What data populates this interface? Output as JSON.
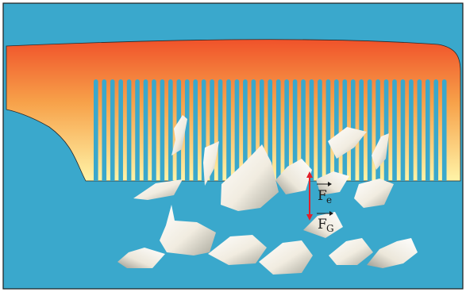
{
  "scene": {
    "background_color": "#3aa8cc",
    "comb_color_top": "#f0522a",
    "comb_color_bottom": "#fff4a8",
    "paper_color": "#f6f3e8",
    "arrow_color": "#e0202a"
  },
  "labels": {
    "electric_force": {
      "main": "F",
      "sub": "e"
    },
    "gravity_force": {
      "main": "F",
      "sub": "G"
    }
  },
  "icons": {
    "comb": "comb-icon",
    "paper_bits": "paper-scrap-icon",
    "force_arrow": "double-headed-arrow-icon"
  }
}
